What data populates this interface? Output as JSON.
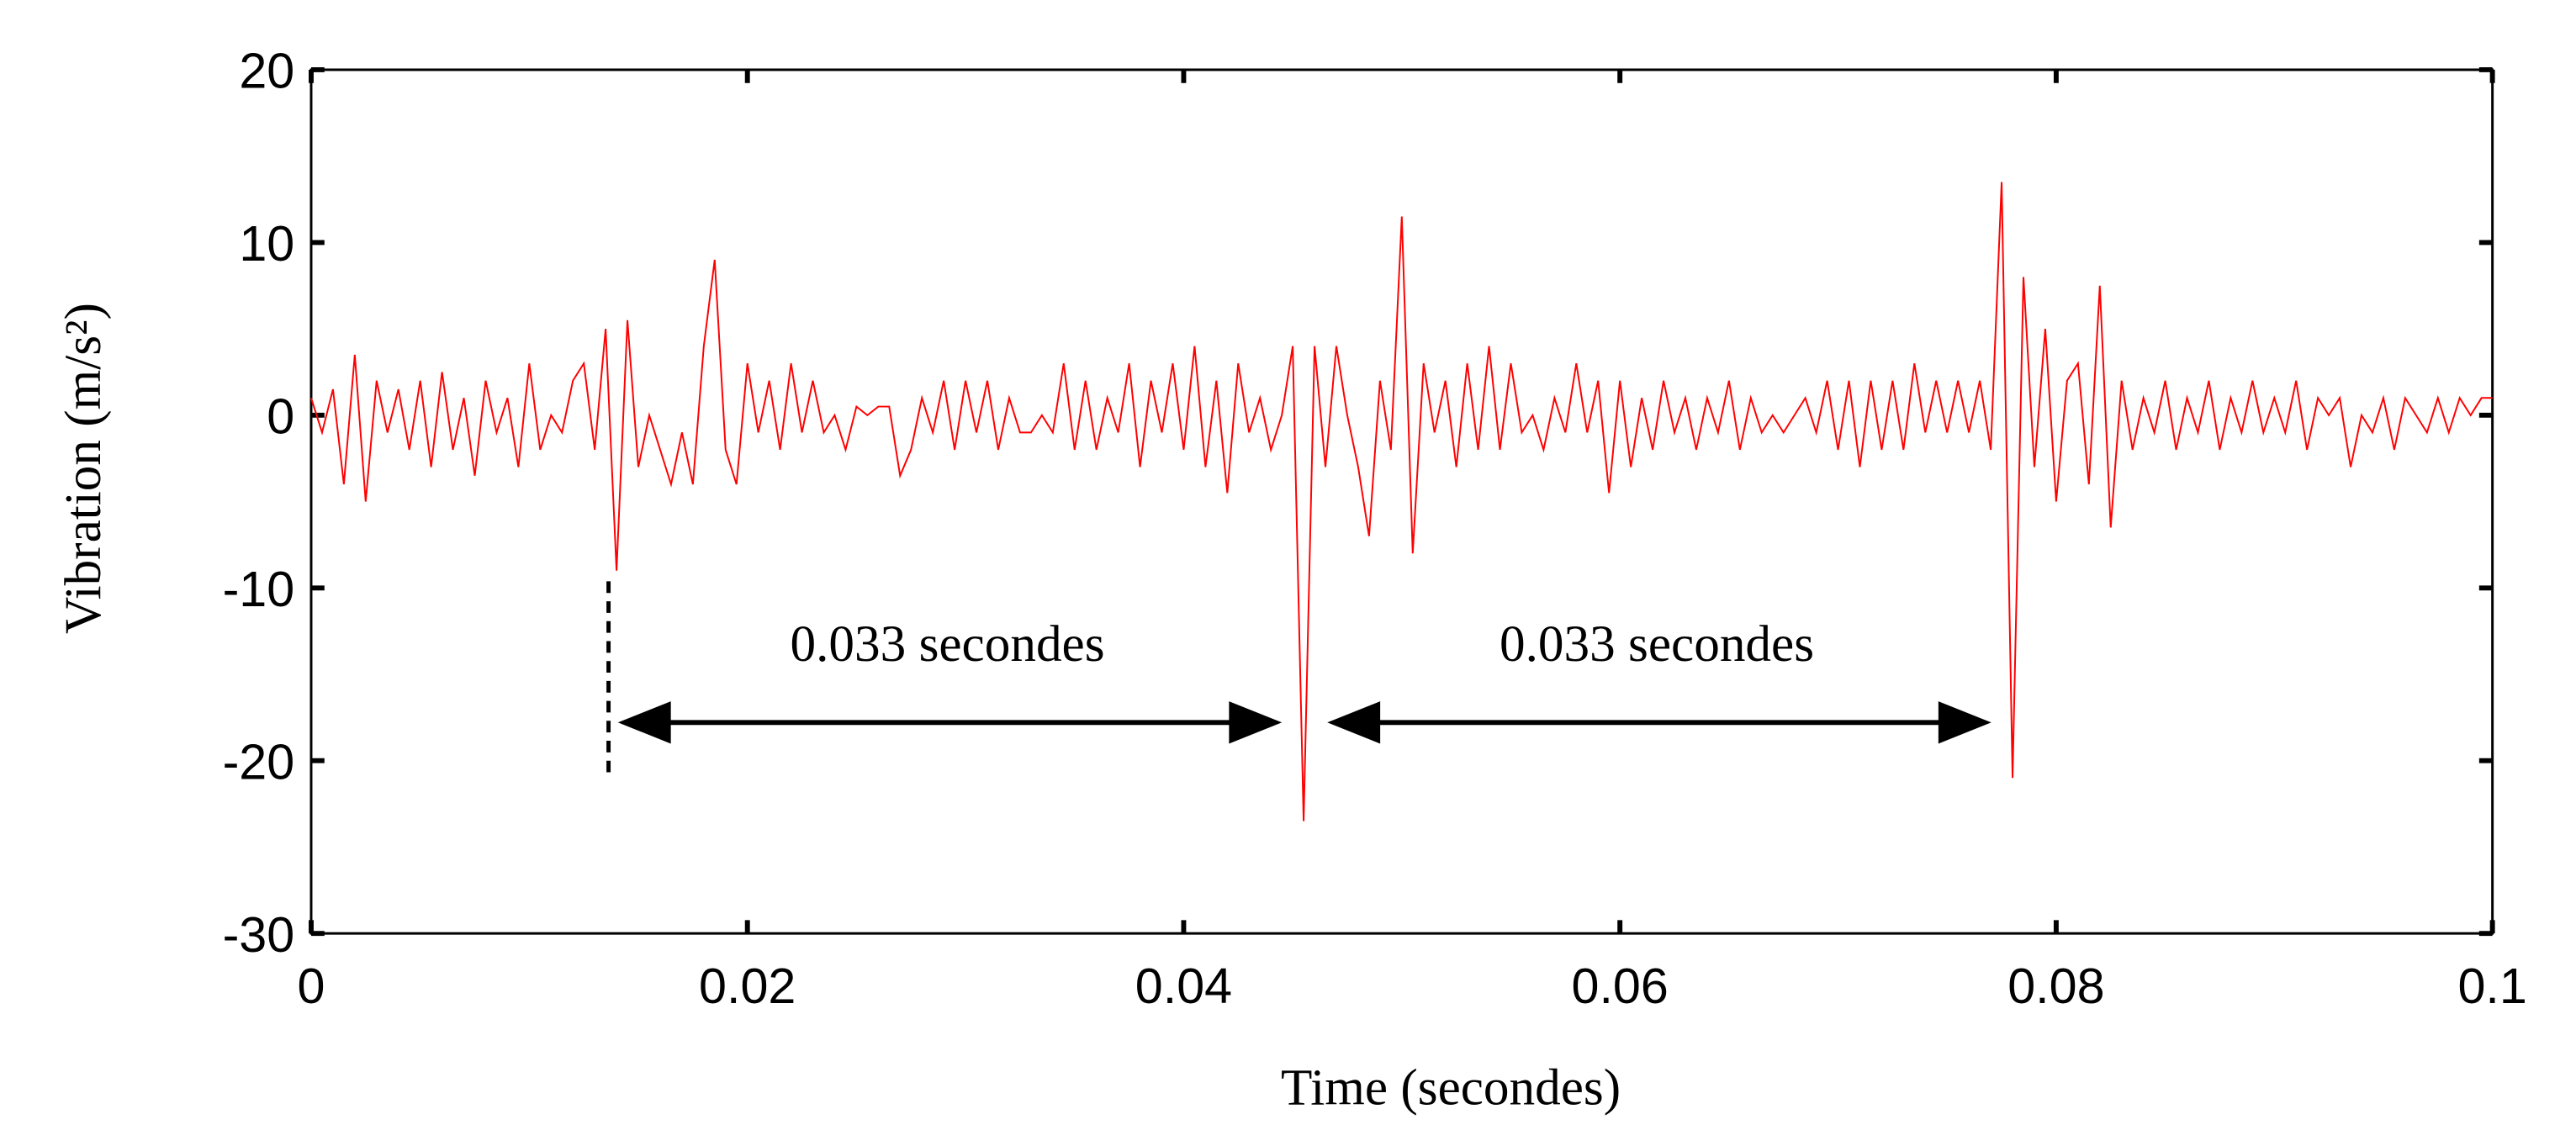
{
  "chart_data": {
    "type": "line",
    "xlabel": "Time (secondes)",
    "ylabel": "Vibration (m/s²)",
    "annotations": [
      "0.033 secondes",
      "0.033 secondes"
    ],
    "xlim": [
      0,
      0.1
    ],
    "ylim": [
      -30,
      20
    ],
    "xticks": [
      0,
      0.02,
      0.04,
      0.06,
      0.08,
      0.1
    ],
    "yticks": [
      -30,
      -20,
      -10,
      0,
      10,
      20
    ],
    "x": [
      0,
      0.0005,
      0.001,
      0.0015,
      0.002,
      0.0025,
      0.003,
      0.0035,
      0.004,
      0.0045,
      0.005,
      0.0055,
      0.006,
      0.0065,
      0.007,
      0.0075,
      0.008,
      0.0085,
      0.009,
      0.0095,
      0.01,
      0.0105,
      0.011,
      0.0115,
      0.012,
      0.0125,
      0.013,
      0.0135,
      0.014,
      0.0145,
      0.015,
      0.0155,
      0.016,
      0.0165,
      0.017,
      0.0175,
      0.018,
      0.0185,
      0.019,
      0.0195,
      0.02,
      0.0205,
      0.021,
      0.0215,
      0.022,
      0.0225,
      0.023,
      0.0235,
      0.024,
      0.0245,
      0.025,
      0.0255,
      0.026,
      0.0265,
      0.027,
      0.0275,
      0.028,
      0.0285,
      0.029,
      0.0295,
      0.03,
      0.0305,
      0.031,
      0.0315,
      0.032,
      0.0325,
      0.033,
      0.0335,
      0.034,
      0.0345,
      0.035,
      0.0355,
      0.036,
      0.0365,
      0.037,
      0.0375,
      0.038,
      0.0385,
      0.039,
      0.0395,
      0.04,
      0.0405,
      0.041,
      0.0415,
      0.042,
      0.0425,
      0.043,
      0.0435,
      0.044,
      0.0445,
      0.045,
      0.0455,
      0.046,
      0.0465,
      0.047,
      0.0475,
      0.048,
      0.0485,
      0.049,
      0.0495,
      0.05,
      0.0505,
      0.051,
      0.0515,
      0.052,
      0.0525,
      0.053,
      0.0535,
      0.054,
      0.0545,
      0.055,
      0.0555,
      0.056,
      0.0565,
      0.057,
      0.0575,
      0.058,
      0.0585,
      0.059,
      0.0595,
      0.06,
      0.0605,
      0.061,
      0.0615,
      0.062,
      0.0625,
      0.063,
      0.0635,
      0.064,
      0.0645,
      0.065,
      0.0655,
      0.066,
      0.0665,
      0.067,
      0.0675,
      0.068,
      0.0685,
      0.069,
      0.0695,
      0.07,
      0.0705,
      0.071,
      0.0715,
      0.072,
      0.0725,
      0.073,
      0.0735,
      0.074,
      0.0745,
      0.075,
      0.0755,
      0.076,
      0.0765,
      0.077,
      0.0775,
      0.078,
      0.0785,
      0.079,
      0.0795,
      0.08,
      0.0805,
      0.081,
      0.0815,
      0.082,
      0.0825,
      0.083,
      0.0835,
      0.084,
      0.0845,
      0.085,
      0.0855,
      0.086,
      0.0865,
      0.087,
      0.0875,
      0.088,
      0.0885,
      0.089,
      0.0895,
      0.09,
      0.0905,
      0.091,
      0.0915,
      0.092,
      0.0925,
      0.093,
      0.0935,
      0.094,
      0.0945,
      0.095,
      0.0955,
      0.096,
      0.0965,
      0.097,
      0.0975,
      0.098,
      0.0985,
      0.099,
      0.0995,
      0.1
    ],
    "series": [
      {
        "color": "#ff0000",
        "values": [
          1,
          -1,
          1.5,
          -4,
          3.5,
          -5,
          2,
          -1,
          1.5,
          -2,
          2,
          -3,
          2.5,
          -2,
          1,
          -3.5,
          2,
          -1,
          1,
          -3,
          3,
          -2,
          0,
          -1,
          2,
          3,
          -2,
          5,
          -9,
          5.5,
          -3,
          0,
          -2,
          -4,
          -1,
          -4,
          4,
          9,
          -2,
          -4,
          3,
          -1,
          2,
          -2,
          3,
          -1,
          2,
          -1,
          0,
          -2,
          0.5,
          0,
          0.5,
          0.5,
          -3.5,
          -2,
          1,
          -1,
          2,
          -2,
          2,
          -1,
          2,
          -2,
          1,
          -1,
          -1,
          0,
          -1,
          3,
          -2,
          2,
          -2,
          1,
          -1,
          3,
          -3,
          2,
          -1,
          3,
          -2,
          4,
          -3,
          2,
          -4.5,
          3,
          -1,
          1,
          -2,
          0,
          4,
          -23.5,
          4,
          -3,
          4,
          0,
          -3,
          -7,
          2,
          -2,
          11.5,
          -8,
          3,
          -1,
          2,
          -3,
          3,
          -2,
          4,
          -2,
          3,
          -1,
          0,
          -2,
          1,
          -1,
          3,
          -1,
          2,
          -4.5,
          2,
          -3,
          1,
          -2,
          2,
          -1,
          1,
          -2,
          1,
          -1,
          2,
          -2,
          1,
          -1,
          0,
          -1,
          0,
          1,
          -1,
          2,
          -2,
          2,
          -3,
          2,
          -2,
          2,
          -2,
          3,
          -1,
          2,
          -1,
          2,
          -1,
          2,
          -2,
          13.5,
          -21,
          8,
          -3,
          5,
          -5,
          2,
          3,
          -4,
          7.5,
          -6.5,
          2,
          -2,
          1,
          -1,
          2,
          -2,
          1,
          -1,
          2,
          -2,
          1,
          -1,
          2,
          -1,
          1,
          -1,
          2,
          -2,
          1,
          0,
          1,
          -3,
          0,
          -1,
          1,
          -2,
          1,
          0,
          -1,
          1,
          -1,
          1,
          0,
          1,
          1
        ]
      }
    ]
  }
}
